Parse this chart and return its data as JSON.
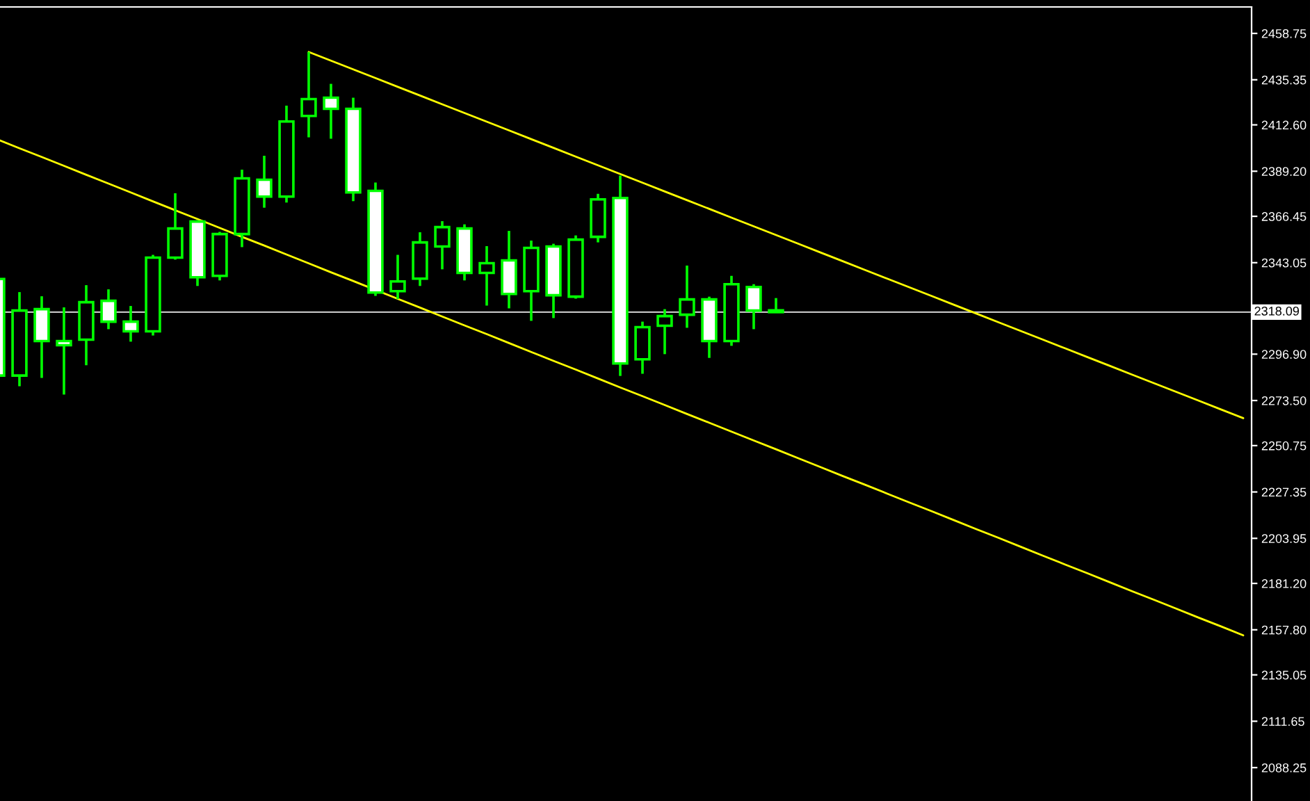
{
  "chart_data": {
    "type": "candlestick",
    "categories": [
      null,
      null,
      null,
      null,
      null,
      null,
      null,
      null,
      null,
      null,
      null,
      null,
      null,
      null,
      null,
      null,
      null,
      null,
      null,
      null,
      null,
      null,
      null,
      null,
      null,
      null,
      null,
      null,
      null,
      null,
      null,
      null,
      null,
      null,
      null,
      null,
      null,
      null,
      null,
      null,
      null,
      null,
      null,
      null,
      null,
      null,
      null,
      null,
      null,
      null,
      null,
      null,
      null,
      null,
      null,
      null,
      null
    ],
    "series": [
      {
        "color": "#00ff00",
        "ohlc": [
          [
            2334.8,
            2334.8,
            2284.7,
            2286.1
          ],
          [
            2286.1,
            2328.2,
            2280.7,
            2318.9
          ],
          [
            2319.6,
            2326.1,
            2284.9,
            2303.5
          ],
          [
            2303.5,
            2320.5,
            2276.5,
            2301.4
          ],
          [
            2304.2,
            2331.7,
            2291.3,
            2323.1
          ],
          [
            2323.8,
            2329.6,
            2309.5,
            2313.3
          ],
          [
            2313.3,
            2321.2,
            2303.2,
            2308.4
          ],
          [
            2308.4,
            2347.0,
            2306.3,
            2345.6
          ],
          [
            2345.6,
            2378.1,
            2344.6,
            2360.3
          ],
          [
            2363.8,
            2364.5,
            2331.3,
            2335.7
          ],
          [
            2336.4,
            2358.6,
            2334.1,
            2357.5
          ],
          [
            2357.5,
            2390.0,
            2350.9,
            2385.6
          ],
          [
            2384.9,
            2397.0,
            2370.8,
            2376.4
          ],
          [
            2376.4,
            2422.3,
            2373.4,
            2414.3
          ],
          [
            2417.1,
            2449.4,
            2406.3,
            2425.6
          ],
          [
            2426.3,
            2433.3,
            2405.6,
            2420.7
          ],
          [
            2420.7,
            2426.3,
            2374.1,
            2378.5
          ],
          [
            2379.3,
            2383.5,
            2326.3,
            2328.0
          ],
          [
            2328.7,
            2347.0,
            2324.7,
            2333.6
          ],
          [
            2335.0,
            2358.4,
            2331.3,
            2353.3
          ],
          [
            2351.2,
            2364.0,
            2339.7,
            2361.0
          ],
          [
            2360.3,
            2362.4,
            2334.1,
            2337.9
          ],
          [
            2337.9,
            2351.4,
            2321.4,
            2342.8
          ],
          [
            2344.2,
            2359.1,
            2320.0,
            2327.3
          ],
          [
            2328.7,
            2354.2,
            2313.7,
            2350.5
          ],
          [
            2351.2,
            2352.6,
            2315.1,
            2326.6
          ],
          [
            2325.9,
            2356.8,
            2324.9,
            2354.7
          ],
          [
            2356.1,
            2377.8,
            2353.3,
            2375.0
          ],
          [
            2375.7,
            2387.0,
            2285.9,
            2292.2
          ],
          [
            2294.3,
            2313.3,
            2287.0,
            2310.5
          ],
          [
            2311.2,
            2319.6,
            2296.9,
            2316.1
          ],
          [
            2316.8,
            2341.6,
            2310.2,
            2324.5
          ],
          [
            2324.5,
            2325.9,
            2295.0,
            2303.5
          ],
          [
            2303.5,
            2336.4,
            2301.1,
            2332.2
          ],
          [
            2330.8,
            2332.2,
            2309.5,
            2318.9
          ],
          [
            2319.0,
            2325.2,
            2318.1,
            2318.1
          ],
          null,
          null,
          null,
          null,
          null,
          null,
          null,
          null,
          null,
          null,
          null,
          null,
          null,
          null,
          null,
          null,
          null,
          null,
          null,
          null,
          null
        ]
      },
      {
        "type": "line",
        "color": "#ffff00",
        "values": [
          null,
          null,
          null,
          null,
          null,
          null,
          null,
          null,
          null,
          null,
          null,
          null,
          null,
          null,
          2449.4,
          2445.0,
          2440.6,
          2436.2,
          2431.8,
          2427.4,
          2423.0,
          2418.6,
          2414.2,
          2409.8,
          2405.4,
          2401.0,
          2396.6,
          2392.2,
          2387.8,
          2383.4,
          2379.0,
          2374.6,
          2370.2,
          2365.8,
          2361.4,
          2357.0,
          2352.6,
          2348.2,
          2343.8,
          2339.4,
          2335.0,
          2330.6,
          2326.2,
          2321.8,
          2317.4,
          2313.0,
          2308.6,
          2304.2,
          2299.8,
          2295.4,
          2291.0,
          2286.6,
          2282.2,
          2277.8,
          2273.4,
          2269.0,
          2264.6
        ]
      },
      {
        "type": "line",
        "color": "#ffff00",
        "values": [
          2405.3,
          2400.8,
          2396.4,
          2391.9,
          2387.4,
          2383.0,
          2378.5,
          2374.0,
          2369.5,
          2365.1,
          2360.6,
          2356.1,
          2351.7,
          2347.2,
          2342.7,
          2338.2,
          2333.8,
          null,
          2324.8,
          2320.4,
          2315.9,
          2311.4,
          2307.0,
          2302.5,
          2298.0,
          2293.5,
          2289.1,
          2284.6,
          2280.1,
          2275.7,
          2271.2,
          2266.7,
          2262.3,
          2257.8,
          2253.3,
          2248.9,
          2244.4,
          2239.9,
          2235.4,
          2231.0,
          2226.5,
          2222.0,
          2217.6,
          2213.1,
          2208.6,
          2204.2,
          2199.7,
          2195.2,
          2190.7,
          2186.3,
          2181.8,
          2177.3,
          2172.9,
          2168.4,
          2163.9,
          2159.5,
          2155.0
        ]
      }
    ],
    "ylim": [
      2071.4,
      2472.1
    ],
    "yticks": [
      {
        "value": 2458.75,
        "label": "2458.75"
      },
      {
        "value": 2435.35,
        "label": "2435.35"
      },
      {
        "value": 2412.6,
        "label": "2412.60"
      },
      {
        "value": 2389.2,
        "label": "2389.20"
      },
      {
        "value": 2366.45,
        "label": "2366.45"
      },
      {
        "value": 2343.05,
        "label": "2343.05"
      },
      {
        "value": 2296.9,
        "label": "2296.90"
      },
      {
        "value": 2273.5,
        "label": "2273.50"
      },
      {
        "value": 2250.75,
        "label": "2250.75"
      },
      {
        "value": 2227.35,
        "label": "2227.35"
      },
      {
        "value": 2203.95,
        "label": "2203.95"
      },
      {
        "value": 2181.2,
        "label": "2181.20"
      },
      {
        "value": 2157.8,
        "label": "2157.80"
      },
      {
        "value": 2135.05,
        "label": "2135.05"
      },
      {
        "value": 2111.65,
        "label": "2111.65"
      },
      {
        "value": 2088.25,
        "label": "2088.25"
      }
    ],
    "ref_lines": [
      {
        "axis": "y",
        "value": 2318.09,
        "label": "2318.09",
        "color": "#c0c0c0"
      }
    ],
    "tick_labels": "y"
  }
}
